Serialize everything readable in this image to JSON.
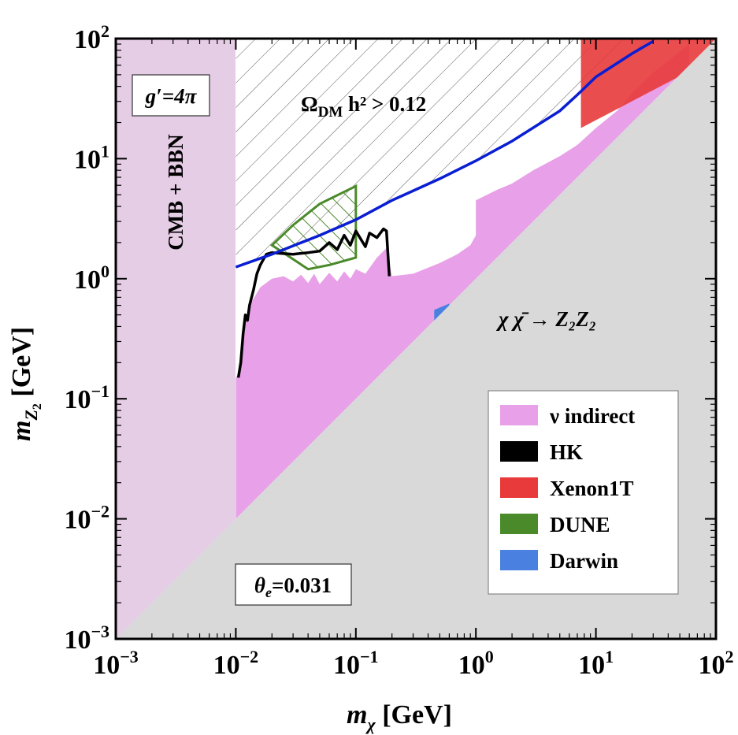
{
  "chart_data": {
    "type": "area",
    "title": "",
    "xlabel": "m_χ [GeV]",
    "ylabel": "m_Z2 [GeV]",
    "xscale": "log",
    "yscale": "log",
    "xlim": [
      0.001,
      100
    ],
    "ylim": [
      0.001,
      100
    ],
    "x_ticks": [
      {
        "value": 0.001,
        "base": "10",
        "exp": "−3"
      },
      {
        "value": 0.01,
        "base": "10",
        "exp": "−2"
      },
      {
        "value": 0.1,
        "base": "10",
        "exp": "−1"
      },
      {
        "value": 1,
        "base": "10",
        "exp": "0"
      },
      {
        "value": 10,
        "base": "10",
        "exp": "1"
      },
      {
        "value": 100,
        "base": "10",
        "exp": "2"
      }
    ],
    "y_ticks": [
      {
        "value": 0.001,
        "base": "10",
        "exp": "−3"
      },
      {
        "value": 0.01,
        "base": "10",
        "exp": "−2"
      },
      {
        "value": 0.1,
        "base": "10",
        "exp": "−1"
      },
      {
        "value": 1,
        "base": "10",
        "exp": "0"
      },
      {
        "value": 10,
        "base": "10",
        "exp": "1"
      },
      {
        "value": 100,
        "base": "10",
        "exp": "2"
      }
    ],
    "annotations": {
      "coupling": "g′=4π",
      "cmb_bbn": "CMB + BBN",
      "relic": "Ω",
      "relic_sub": "DM",
      "relic_rest": " h² > 0.12",
      "channel": "χ χ̄ → Z₂Z₂",
      "theta": "θ",
      "theta_sub": "e",
      "theta_val": "=0.031"
    },
    "legend": {
      "position": "bottom-right",
      "entries": [
        {
          "label": "ν indirect",
          "color": "#e8a0e8"
        },
        {
          "label": "HK",
          "color": "#000000"
        },
        {
          "label": "Xenon1T",
          "color": "#e83a3a"
        },
        {
          "label": "DUNE",
          "color": "#4a8a2a"
        },
        {
          "label": "Darwin",
          "color": "#4a80e0"
        }
      ]
    },
    "colors": {
      "kinematic": "#d9d9d9",
      "cmb_bbn": "#e6cde6",
      "nu_indirect": "#e8a0e8",
      "hk": "#000000",
      "xenon": "#e83a3a",
      "dune": "#4a8a2a",
      "darwin": "#4a80e0",
      "relic": "#0a1ed2"
    },
    "series": [
      {
        "name": "ν indirect",
        "kind": "region",
        "x": [
          0.01,
          0.0105,
          0.0115,
          0.013,
          0.016,
          0.02,
          0.025,
          0.03,
          0.035,
          0.04,
          0.045,
          0.05,
          0.06,
          0.07,
          0.08,
          0.09,
          0.1,
          0.12,
          0.15,
          0.18,
          0.2,
          0.3,
          0.5,
          0.7,
          0.9,
          1.0,
          1.0,
          1.5,
          2,
          3,
          5,
          7,
          10,
          15,
          20,
          30,
          40,
          60,
          60,
          20,
          10,
          5,
          2,
          1,
          0.5,
          0.2,
          0.1,
          0.05,
          0.02,
          0.01
        ],
        "y": [
          0.15,
          0.16,
          0.4,
          0.6,
          0.85,
          1.0,
          1.05,
          0.95,
          1.08,
          0.92,
          1.1,
          0.9,
          1.12,
          0.95,
          1.15,
          1.0,
          1.2,
          1.1,
          1.5,
          1.8,
          1.05,
          1.1,
          1.35,
          1.6,
          1.9,
          2.3,
          4.5,
          5.5,
          6.2,
          8.0,
          10.5,
          13,
          18,
          25,
          35,
          52,
          65,
          90,
          60,
          20,
          10,
          5,
          2,
          1,
          0.5,
          0.2,
          0.1,
          0.05,
          0.02,
          0.01
        ]
      },
      {
        "name": "HK",
        "kind": "line",
        "x": [
          0.0105,
          0.011,
          0.0115,
          0.012,
          0.0125,
          0.013,
          0.014,
          0.015,
          0.016,
          0.017,
          0.018,
          0.02,
          0.025,
          0.03,
          0.04,
          0.05,
          0.06,
          0.07,
          0.08,
          0.09,
          0.1,
          0.12,
          0.13,
          0.15,
          0.17,
          0.18,
          0.19
        ],
        "y": [
          0.15,
          0.2,
          0.35,
          0.5,
          0.45,
          0.6,
          0.8,
          1.1,
          1.3,
          1.45,
          1.6,
          1.65,
          1.62,
          1.6,
          1.65,
          1.7,
          2.0,
          1.75,
          2.3,
          1.9,
          2.5,
          1.85,
          2.4,
          2.2,
          2.6,
          2.5,
          1.05
        ]
      },
      {
        "name": "Xenon1T",
        "kind": "region",
        "x": [
          7.5,
          7.5,
          100,
          100
        ],
        "y": [
          18,
          100,
          100,
          70
        ]
      },
      {
        "name": "DUNE",
        "kind": "hatched-region",
        "x": [
          0.02,
          0.03,
          0.05,
          0.1,
          0.1,
          0.06,
          0.04
        ],
        "y": [
          1.9,
          2.8,
          4.2,
          5.9,
          1.5,
          1.3,
          1.2
        ]
      },
      {
        "name": "Darwin",
        "kind": "region",
        "x": [
          0.45,
          0.6,
          0.6,
          0.45
        ],
        "y": [
          0.4,
          0.57,
          0.62,
          0.55
        ]
      },
      {
        "name": "Ω_DM h² = 0.12",
        "kind": "line",
        "x": [
          0.01,
          0.02,
          0.05,
          0.1,
          0.2,
          0.5,
          1,
          2,
          5,
          7,
          10,
          20,
          30
        ],
        "y": [
          1.25,
          1.6,
          2.3,
          3.1,
          4.5,
          6.8,
          9.6,
          14,
          25,
          34,
          48,
          75,
          95
        ]
      }
    ]
  }
}
